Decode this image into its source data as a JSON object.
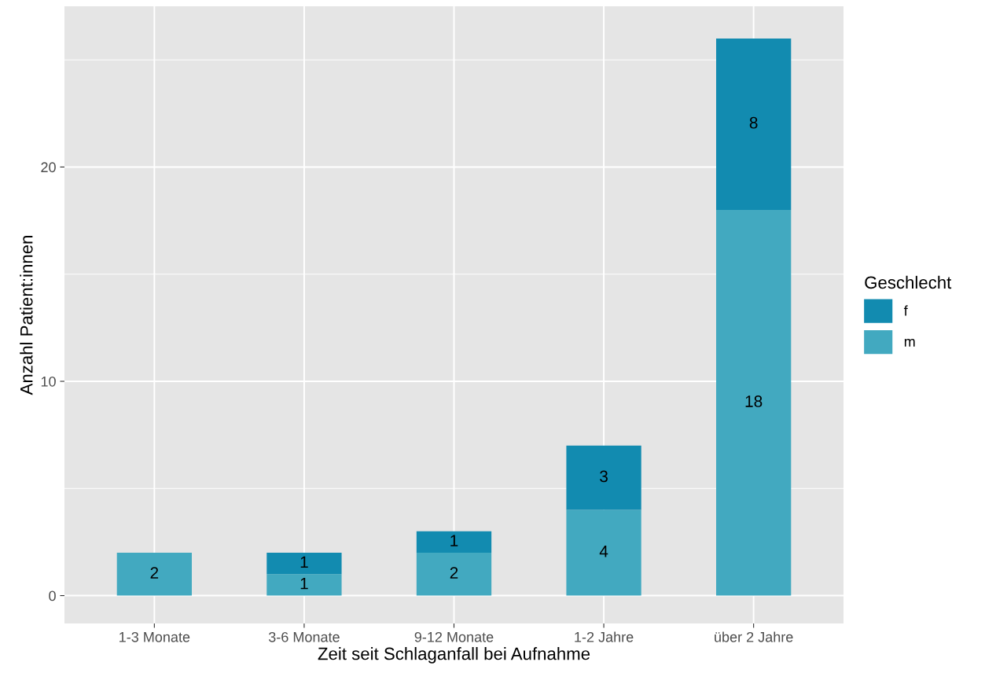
{
  "chart_data": {
    "type": "bar",
    "stacked": true,
    "xlabel": "Zeit seit Schlaganfall bei Aufnahme",
    "ylabel": "Anzahl Patient:innen",
    "legend_title": "Geschlecht",
    "categories": [
      "1-3 Monate",
      "3-6 Monate",
      "9-12 Monate",
      "1-2 Jahre",
      "über 2 Jahre"
    ],
    "series": [
      {
        "name": "m",
        "color": "#42a9c0",
        "values": [
          2,
          1,
          2,
          4,
          18
        ]
      },
      {
        "name": "f",
        "color": "#128bb0",
        "values": [
          null,
          1,
          1,
          3,
          8
        ]
      }
    ],
    "ylim": [
      -1.3,
      27.5
    ],
    "yticks": [
      0,
      10,
      20
    ],
    "grid": true,
    "legend": "right",
    "data_labels": true
  }
}
